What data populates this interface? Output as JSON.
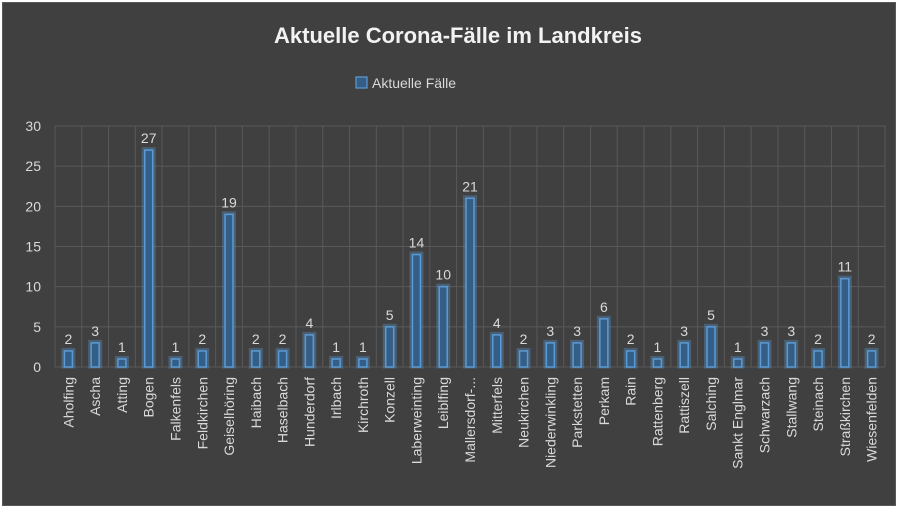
{
  "chart_data": {
    "type": "bar",
    "title": "Aktuelle Corona-Fälle im Landkreis",
    "xlabel": "",
    "ylabel": "",
    "ylim": [
      0,
      30
    ],
    "yticks": [
      0,
      5,
      10,
      15,
      20,
      25,
      30
    ],
    "grid": true,
    "legend_position": "top",
    "colors": {
      "bar_fill": "#355e86",
      "bar_edge": "#5b9bd5",
      "background": "#404040",
      "grid": "#595959"
    },
    "categories": [
      "Aholfing",
      "Ascha",
      "Atting",
      "Bogen",
      "Falkenfels",
      "Feldkirchen",
      "Geiselhöring",
      "Haibach",
      "Haselbach",
      "Hunderdorf",
      "Irlbach",
      "Kirchroth",
      "Konzell",
      "Laberweinting",
      "Leiblfing",
      "Mallersdorf-...",
      "Mitterfels",
      "Neukirchen",
      "Niederwinkling",
      "Parkstetten",
      "Perkam",
      "Rain",
      "Rattenberg",
      "Rattiszell",
      "Salching",
      "Sankt Englmar",
      "Schwarzach",
      "Stallwang",
      "Steinach",
      "Straßkirchen",
      "Wiesenfelden"
    ],
    "series": [
      {
        "name": "Aktuelle Fälle",
        "values": [
          2,
          3,
          1,
          27,
          1,
          2,
          19,
          2,
          2,
          4,
          1,
          1,
          5,
          14,
          10,
          21,
          4,
          2,
          3,
          3,
          6,
          2,
          1,
          3,
          5,
          1,
          3,
          3,
          2,
          11,
          2
        ]
      }
    ]
  }
}
